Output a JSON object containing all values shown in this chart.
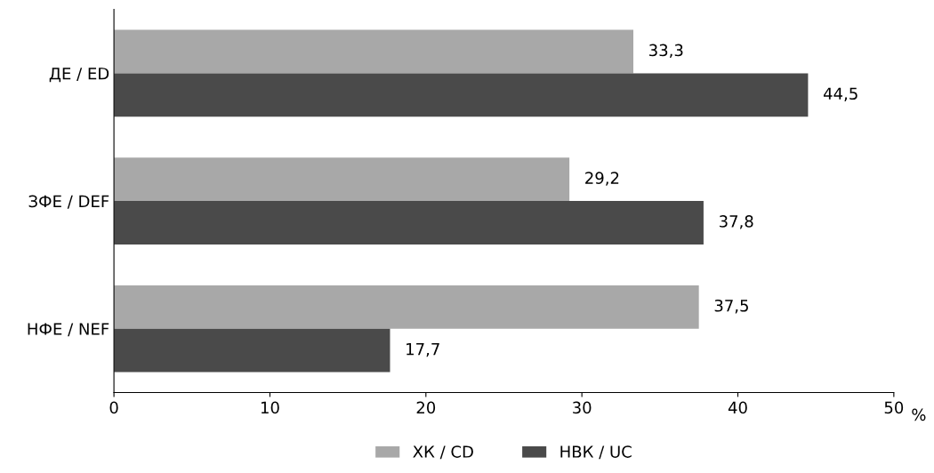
{
  "chart_data": {
    "type": "bar",
    "orientation": "horizontal",
    "categories": [
      "ДЕ / ED",
      "ЗФЕ / DEF",
      "НФЕ / NEF"
    ],
    "series": [
      {
        "name": "ХК / CD",
        "color": "#a8a8a8",
        "values": [
          33.3,
          29.2,
          37.5
        ],
        "value_labels": [
          "33,3",
          "29,2",
          "37,5"
        ]
      },
      {
        "name": "НВК / UC",
        "color": "#4a4a4a",
        "values": [
          44.5,
          37.8,
          17.7
        ],
        "value_labels": [
          "44,5",
          "37,8",
          "17,7"
        ]
      }
    ],
    "xlabel": "%",
    "xlim": [
      0,
      50
    ],
    "xticks": [
      0,
      10,
      20,
      30,
      40,
      50
    ],
    "grid": false,
    "legend": "bottom"
  }
}
